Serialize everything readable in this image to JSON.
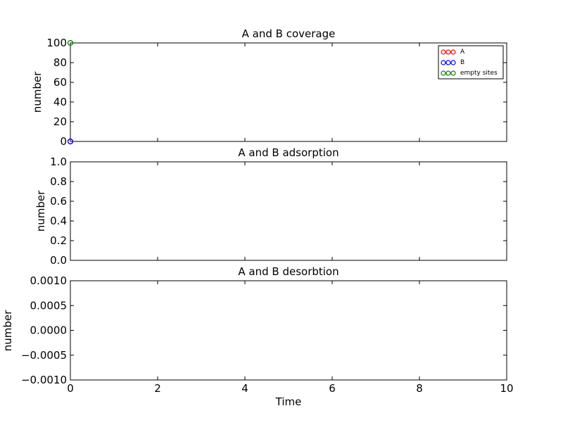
{
  "figure": {
    "background": "#ffffff"
  },
  "chart_data": [
    {
      "type": "scatter",
      "title": "A and B coverage",
      "xlabel": "",
      "ylabel": "number",
      "xlim": [
        0,
        10
      ],
      "ylim": [
        0,
        100
      ],
      "yticks": [
        "0",
        "20",
        "40",
        "60",
        "80",
        "100"
      ],
      "ytick_values": [
        0,
        20,
        40,
        60,
        80,
        100
      ],
      "show_xtick_labels": false,
      "grid": false,
      "legend": {
        "location": "top-right",
        "entries": [
          {
            "label": "A",
            "color": "#ff0000"
          },
          {
            "label": "B",
            "color": "#0000ff"
          },
          {
            "label": "empty sites",
            "color": "#008000"
          }
        ]
      },
      "series": [
        {
          "name": "A",
          "color": "#ff0000",
          "points": [
            [
              0,
              0
            ]
          ]
        },
        {
          "name": "B",
          "color": "#0000ff",
          "points": [
            [
              0,
              0
            ]
          ]
        },
        {
          "name": "empty sites",
          "color": "#008000",
          "points": [
            [
              0,
              100
            ]
          ]
        }
      ]
    },
    {
      "type": "scatter",
      "title": "A and B adsorption",
      "xlabel": "",
      "ylabel": "number",
      "xlim": [
        0,
        10
      ],
      "ylim": [
        0,
        1
      ],
      "yticks": [
        "0.0",
        "0.2",
        "0.4",
        "0.6",
        "0.8",
        "1.0"
      ],
      "ytick_values": [
        0,
        0.2,
        0.4,
        0.6,
        0.8,
        1.0
      ],
      "show_xtick_labels": false,
      "grid": false,
      "series": []
    },
    {
      "type": "scatter",
      "title": "A and B desorbtion",
      "xlabel": "Time",
      "ylabel": "number",
      "xlim": [
        0,
        10
      ],
      "ylim": [
        -0.001,
        0.001
      ],
      "yticks": [
        "−0.0010",
        "−0.0005",
        "0.0000",
        "0.0005",
        "0.0010"
      ],
      "ytick_values": [
        -0.001,
        -0.0005,
        0,
        0.0005,
        0.001
      ],
      "xticks": [
        "0",
        "2",
        "4",
        "6",
        "8",
        "10"
      ],
      "xtick_values": [
        0,
        2,
        4,
        6,
        8,
        10
      ],
      "show_xtick_labels": true,
      "grid": false,
      "series": []
    }
  ]
}
